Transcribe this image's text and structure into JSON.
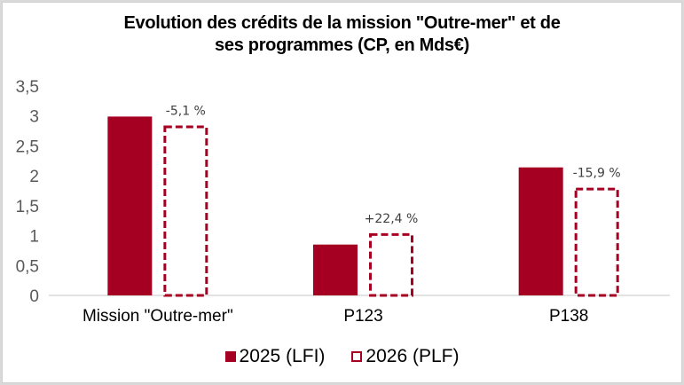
{
  "chart_data": {
    "type": "bar",
    "title_line1": "Evolution des crédits de la mission \"Outre-mer\" et de",
    "title_line2": "ses programmes  (CP, en Mds€)",
    "xlabel": "",
    "ylabel": "",
    "ylim": [
      0,
      3.5
    ],
    "yticks": [
      "0",
      "0,5",
      "1",
      "1,5",
      "2",
      "2,5",
      "3",
      "3,5"
    ],
    "ytick_values": [
      0,
      0.5,
      1,
      1.5,
      2,
      2.5,
      3,
      3.5
    ],
    "categories": [
      "Mission \"Outre-mer\"",
      "P123",
      "P138"
    ],
    "series": [
      {
        "name": "2025 (LFI)",
        "values": [
          2.99,
          0.85,
          2.14
        ],
        "color": "#a50021",
        "style": "solid"
      },
      {
        "name": "2026 (PLF)",
        "values": [
          2.84,
          1.04,
          1.8
        ],
        "color": "#a50021",
        "style": "dashed-outline"
      }
    ],
    "annotations": [
      "-5,1 %",
      "+22,4 %",
      "-15,9 %"
    ],
    "grid": false,
    "legend_position": "bottom"
  }
}
